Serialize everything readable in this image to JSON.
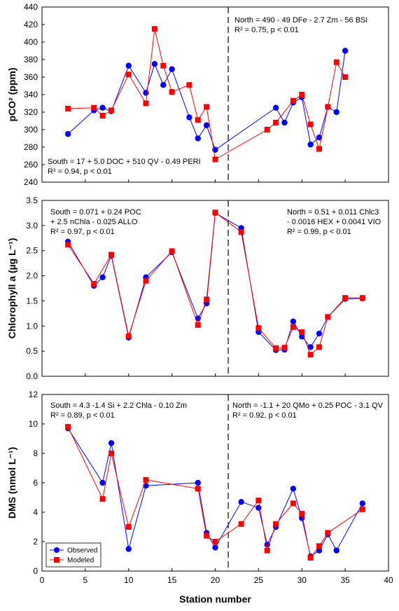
{
  "chart_data": [
    {
      "type": "line",
      "ylabel": "pCO² (ppm)",
      "ylim": [
        240,
        440
      ],
      "yticks": [
        240,
        260,
        280,
        300,
        320,
        340,
        360,
        380,
        400,
        420,
        440
      ],
      "xlim": [
        0,
        40
      ],
      "divider_x": 21.5,
      "annotations": [
        {
          "lines": [
            "North = 490 - 49 DFe - 2.7 Zm - 56 BSi",
            "R² = 0.75, p < 0.01"
          ]
        },
        {
          "lines": [
            "South = 17 + 5.0 DOC + 510 QV - 0.49 PERI",
            "R² = 0.94, p < 0.01"
          ]
        }
      ],
      "series": [
        {
          "name": "Observed",
          "color": "#0000ff",
          "marker": "circle",
          "x": [
            3,
            6,
            7,
            8,
            10,
            12,
            13,
            14,
            15,
            17,
            18,
            19,
            20,
            27,
            28,
            29,
            30,
            31,
            32,
            33,
            34,
            35
          ],
          "y": [
            295,
            322,
            325,
            321,
            373,
            342,
            375,
            351,
            369,
            314,
            290,
            305,
            277,
            325,
            308,
            331,
            337,
            283,
            291,
            326,
            320,
            390
          ]
        },
        {
          "name": "Modeled",
          "color": "#ff0000",
          "marker": "square",
          "x": [
            3,
            6,
            7,
            8,
            10,
            12,
            13,
            14,
            15,
            17,
            18,
            19,
            20,
            26,
            27,
            29,
            30,
            31,
            32,
            33,
            34,
            35
          ],
          "y": [
            324,
            325,
            316,
            322,
            363,
            330,
            415,
            373,
            343,
            351,
            311,
            326,
            266,
            300,
            308,
            333,
            340,
            306,
            278,
            326,
            377,
            360
          ]
        }
      ]
    },
    {
      "type": "line",
      "ylabel": "Chlorophyll a (µg L⁻¹)",
      "ylim": [
        0,
        3.5
      ],
      "yticks": [
        "0.0",
        "0.5",
        "1.0",
        "1.5",
        "2.0",
        "2.5",
        "3.0",
        "3.5"
      ],
      "xlim": [
        0,
        40
      ],
      "divider_x": 21.5,
      "annotations": [
        {
          "lines": [
            "South = 0.071 + 0.24 POC",
            "+ 2.5 nChla - 0.025 ALLO",
            "R² = 0.97, p < 0.01"
          ]
        },
        {
          "lines": [
            "North = 0.51 + 0.011 Chlc3",
            "- 0.0016 HEX + 0.0041 VIO",
            "R² = 0.99, p < 0.01"
          ]
        }
      ],
      "series": [
        {
          "name": "Observed",
          "color": "#0000ff",
          "marker": "circle",
          "x": [
            3,
            6,
            7,
            8,
            10,
            12,
            15,
            18,
            19,
            20,
            23,
            25,
            27,
            28,
            29,
            30,
            31,
            32,
            33,
            35,
            37
          ],
          "y": [
            2.68,
            1.8,
            1.97,
            2.4,
            0.77,
            1.97,
            2.47,
            1.15,
            1.45,
            3.25,
            2.95,
            0.88,
            0.52,
            0.53,
            1.09,
            0.79,
            0.58,
            0.85,
            1.18,
            1.54,
            1.55
          ]
        },
        {
          "name": "Modeled",
          "color": "#ff0000",
          "marker": "square",
          "x": [
            3,
            6,
            8,
            10,
            12,
            15,
            18,
            19,
            20,
            23,
            25,
            27,
            28,
            29,
            30,
            31,
            32,
            33,
            35,
            37
          ],
          "y": [
            2.62,
            1.84,
            2.42,
            0.8,
            1.9,
            2.49,
            1.02,
            1.53,
            3.26,
            2.87,
            0.96,
            0.56,
            0.57,
            0.98,
            0.88,
            0.43,
            0.58,
            1.18,
            1.56,
            1.56
          ]
        }
      ]
    },
    {
      "type": "line",
      "xlabel": "Station number",
      "ylabel": "DMS (nmol L⁻¹)",
      "ylim": [
        0,
        12
      ],
      "yticks": [
        0,
        2,
        4,
        6,
        8,
        10,
        12
      ],
      "xlim": [
        0,
        40
      ],
      "xticks": [
        0,
        5,
        10,
        15,
        20,
        25,
        30,
        35,
        40
      ],
      "divider_x": 21.5,
      "legend": "bottom-left",
      "annotations": [
        {
          "lines": [
            "South = 4.3 -1.4 Si + 2.2 Chla - 0.10 Zm",
            "R² = 0.89, p < 0.01"
          ]
        },
        {
          "lines": [
            "North = -1.1 + 20 QMo + 0.25 POC - 3.1 QV",
            "R² = 0.92, p < 0.01"
          ]
        }
      ],
      "series": [
        {
          "name": "Observed",
          "color": "#0000ff",
          "marker": "circle",
          "x": [
            3,
            7,
            8,
            10,
            12,
            18,
            19,
            20,
            23,
            25,
            26,
            27,
            29,
            30,
            31,
            32,
            33,
            34,
            37
          ],
          "y": [
            9.7,
            6.0,
            8.7,
            1.5,
            5.8,
            6.0,
            2.6,
            1.6,
            4.7,
            4.3,
            1.8,
            3.0,
            5.6,
            3.6,
            1.0,
            1.4,
            2.5,
            1.4,
            4.6
          ]
        },
        {
          "name": "Modeled",
          "color": "#ff0000",
          "marker": "square",
          "x": [
            3,
            7,
            8,
            10,
            12,
            18,
            19,
            20,
            23,
            25,
            26,
            27,
            29,
            30,
            31,
            32,
            33,
            37
          ],
          "y": [
            9.8,
            4.9,
            8.0,
            3.0,
            6.2,
            5.6,
            2.4,
            2.0,
            3.2,
            4.8,
            1.4,
            3.2,
            4.6,
            3.9,
            0.9,
            1.7,
            2.6,
            4.2
          ]
        }
      ]
    }
  ]
}
